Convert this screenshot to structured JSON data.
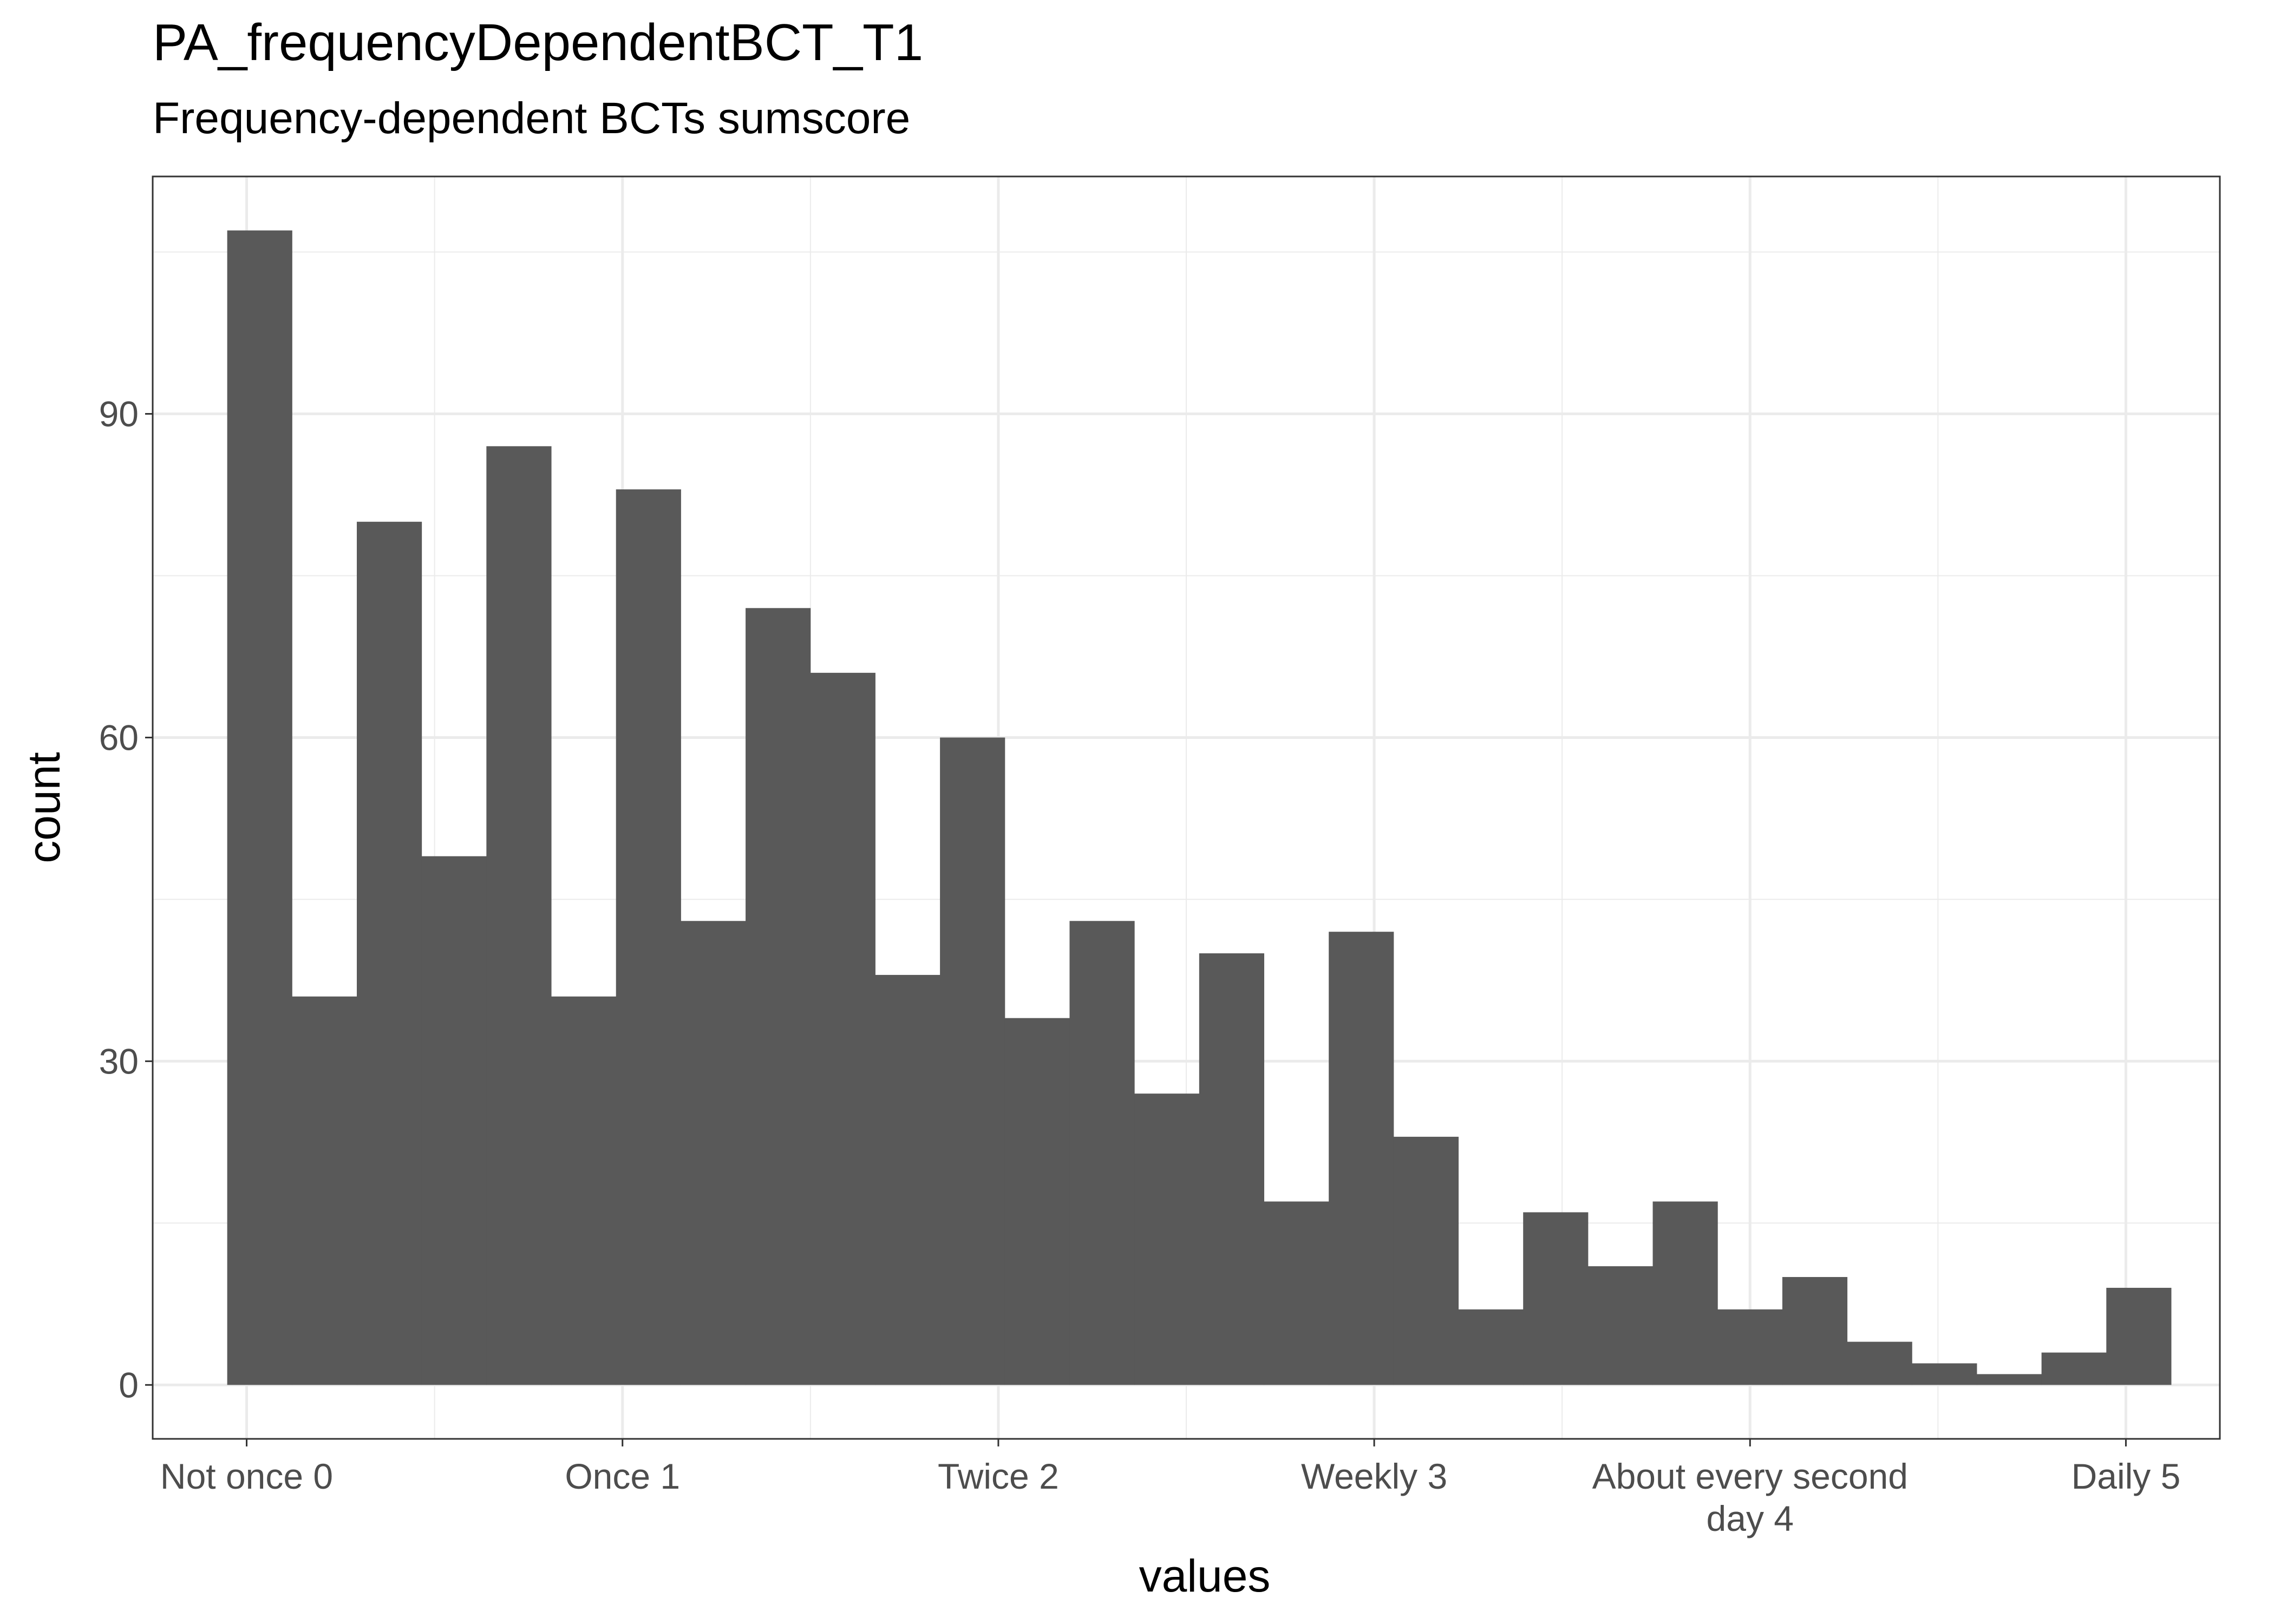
{
  "chart_data": {
    "type": "bar",
    "title": "PA_frequencyDependentBCT_T1",
    "subtitle": "Frequency-dependent BCTs sumscore",
    "xlabel": "values",
    "ylabel": "count",
    "xlim": [
      -0.25,
      5.25
    ],
    "ylim": [
      -5,
      112
    ],
    "x_ticks": [
      {
        "value": 0,
        "label": "Not once 0"
      },
      {
        "value": 1,
        "label": "Once 1"
      },
      {
        "value": 2,
        "label": "Twice 2"
      },
      {
        "value": 3,
        "label": "Weekly 3"
      },
      {
        "value": 4,
        "label": "About every second day 4"
      },
      {
        "value": 5,
        "label": "Daily 5"
      }
    ],
    "y_ticks": [
      0,
      30,
      60,
      90
    ],
    "bin_width": 0.1724,
    "x_start": -0.0517,
    "values": [
      107,
      36,
      80,
      49,
      87,
      36,
      83,
      43,
      72,
      66,
      38,
      60,
      34,
      43,
      27,
      40,
      17,
      42,
      23,
      7,
      16,
      11,
      17,
      7,
      10,
      4,
      2,
      1,
      3,
      9
    ],
    "grid": true,
    "bar_color": "#595959"
  }
}
